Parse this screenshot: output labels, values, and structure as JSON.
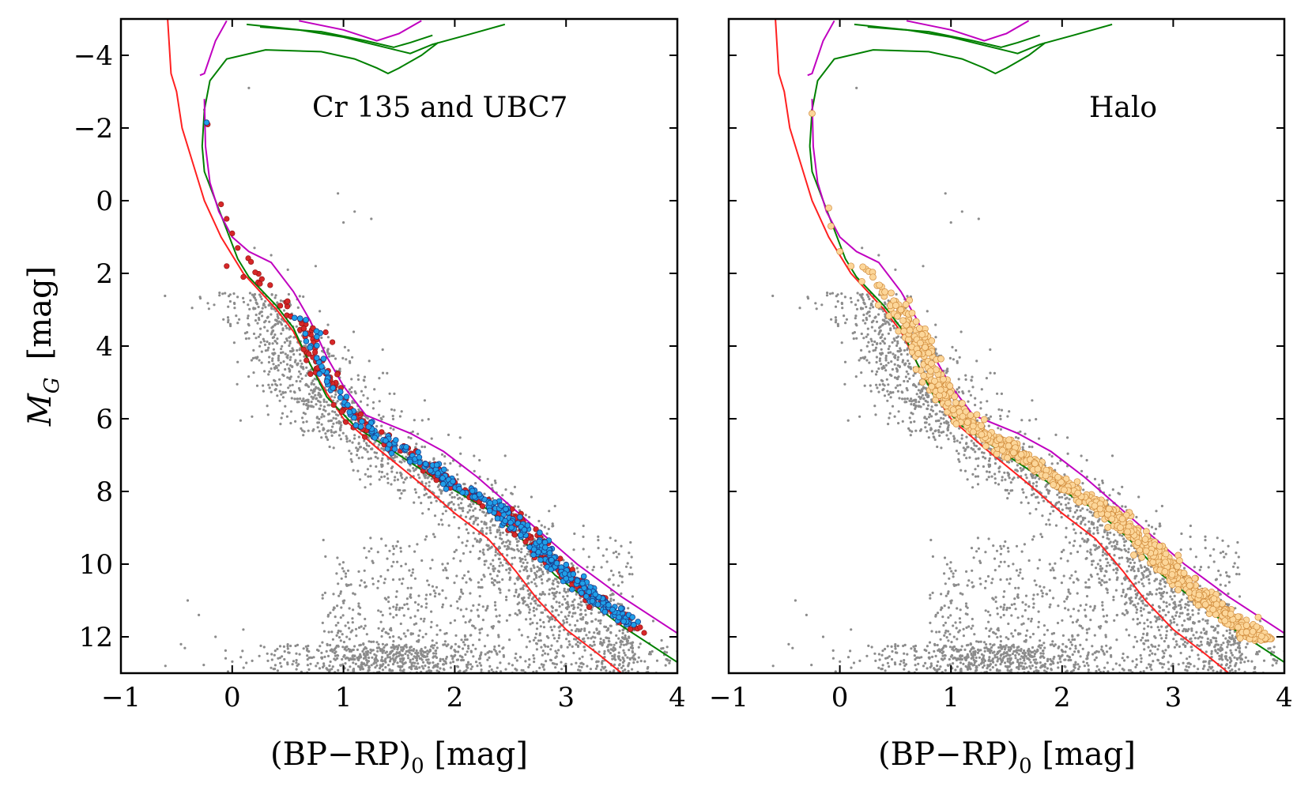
{
  "chart_data": [
    {
      "type": "scatter",
      "title": "Cr 135 and UBC7",
      "xlabel": "(BP−RP)",
      "xlabel_sub": "0",
      "xlabel_unit": " [mag]",
      "ylabel_main": "M",
      "ylabel_sub": "G",
      "ylabel_unit": "[mag]",
      "xlim": [
        -1,
        4
      ],
      "ylim": [
        13,
        -5
      ],
      "y_inverted": true,
      "xticks": [
        -1,
        0,
        1,
        2,
        3,
        4
      ],
      "xtick_labels": [
        "−1",
        "0",
        "1",
        "2",
        "3",
        "4"
      ],
      "yticks": [
        -4,
        -2,
        0,
        2,
        4,
        6,
        8,
        10,
        12
      ],
      "ytick_labels": [
        "−4",
        "−2",
        "0",
        "2",
        "4",
        "6",
        "8",
        "10",
        "12"
      ],
      "grid": false,
      "legend": null,
      "series": [
        {
          "kind": "field-stars",
          "color": "#8c8c8c",
          "marker": "dot"
        },
        {
          "kind": "members-red",
          "color": "#d62728",
          "marker": "circle"
        },
        {
          "kind": "members-blue",
          "color": "#1f9fe8",
          "edge": "#1b3a8a",
          "marker": "circle"
        }
      ]
    },
    {
      "type": "scatter",
      "title": "Halo",
      "xlabel": "(BP−RP)",
      "xlabel_sub": "0",
      "xlabel_unit": " [mag]",
      "xlim": [
        -1,
        4
      ],
      "ylim": [
        13,
        -5
      ],
      "y_inverted": true,
      "xticks": [
        -1,
        0,
        1,
        2,
        3,
        4
      ],
      "xtick_labels": [
        "−1",
        "0",
        "1",
        "2",
        "3",
        "4"
      ],
      "yticks": [
        -4,
        -2,
        0,
        2,
        4,
        6,
        8,
        10,
        12
      ],
      "grid": false,
      "legend": null,
      "series": [
        {
          "kind": "field-stars",
          "color": "#8c8c8c",
          "marker": "dot"
        },
        {
          "kind": "halo-members",
          "color": "#fcd699",
          "edge": "#d08a3a",
          "marker": "circle"
        }
      ]
    }
  ],
  "isochrones": [
    {
      "color": "#ff2020",
      "points": [
        [
          -0.58,
          -5
        ],
        [
          -0.55,
          -3.5
        ],
        [
          -0.5,
          -3
        ],
        [
          -0.45,
          -2
        ],
        [
          -0.35,
          -1
        ],
        [
          -0.25,
          0
        ],
        [
          -0.1,
          1
        ],
        [
          0.1,
          2
        ],
        [
          0.4,
          3
        ],
        [
          0.55,
          3.6
        ],
        [
          0.7,
          4.5
        ],
        [
          0.85,
          5.3
        ],
        [
          1.0,
          6.0
        ],
        [
          1.3,
          6.8
        ],
        [
          1.7,
          7.8
        ],
        [
          2.0,
          8.6
        ],
        [
          2.3,
          9.3
        ],
        [
          2.55,
          10.2
        ],
        [
          2.75,
          11.0
        ],
        [
          3.0,
          11.8
        ],
        [
          3.3,
          12.5
        ],
        [
          3.5,
          13
        ]
      ]
    },
    {
      "color": "#008000",
      "points": [
        [
          -0.27,
          -1.5
        ],
        [
          -0.25,
          -0.8
        ],
        [
          -0.15,
          0
        ],
        [
          -0.05,
          0.8
        ],
        [
          0.05,
          1.6
        ],
        [
          0.15,
          2.1
        ],
        [
          0.4,
          2.9
        ],
        [
          0.55,
          3.5
        ],
        [
          0.7,
          4.5
        ],
        [
          0.85,
          5.4
        ],
        [
          1.1,
          6.2
        ],
        [
          1.5,
          7.0
        ],
        [
          1.9,
          7.8
        ],
        [
          2.3,
          8.5
        ],
        [
          2.6,
          9.3
        ],
        [
          2.9,
          10.3
        ],
        [
          3.2,
          11.0
        ],
        [
          3.5,
          11.7
        ],
        [
          4.0,
          12.7
        ]
      ]
    },
    {
      "color": "#008000",
      "points": [
        [
          -0.27,
          -1.5
        ],
        [
          -0.25,
          -2.5
        ],
        [
          -0.2,
          -3.3
        ],
        [
          -0.05,
          -3.9
        ],
        [
          0.3,
          -4.15
        ],
        [
          0.8,
          -4.1
        ],
        [
          1.1,
          -3.9
        ],
        [
          1.3,
          -3.65
        ],
        [
          1.4,
          -3.5
        ],
        [
          1.5,
          -3.65
        ],
        [
          1.7,
          -4.0
        ],
        [
          1.85,
          -4.35
        ]
      ]
    },
    {
      "color": "#008000",
      "points": [
        [
          0.13,
          -4.85
        ],
        [
          0.6,
          -4.7
        ],
        [
          1.0,
          -4.5
        ],
        [
          1.4,
          -4.2
        ],
        [
          1.6,
          -4.05
        ],
        [
          1.8,
          -4.3
        ],
        [
          2.1,
          -4.55
        ],
        [
          2.45,
          -4.85
        ]
      ]
    },
    {
      "color": "#008000",
      "points": [
        [
          0.25,
          -4.78
        ],
        [
          0.8,
          -4.65
        ],
        [
          1.2,
          -4.4
        ],
        [
          1.45,
          -4.22
        ],
        [
          1.6,
          -4.35
        ],
        [
          1.8,
          -4.55
        ]
      ]
    },
    {
      "color": "#c000c0",
      "points": [
        [
          -0.29,
          -3.45
        ],
        [
          -0.25,
          -3.5
        ],
        [
          -0.15,
          -4.4
        ],
        [
          -0.05,
          -4.95
        ]
      ]
    },
    {
      "color": "#c000c0",
      "points": [
        [
          -0.25,
          -2.8
        ],
        [
          -0.24,
          -1.5
        ],
        [
          -0.2,
          -0.5
        ],
        [
          -0.12,
          0.3
        ],
        [
          0.0,
          1.0
        ],
        [
          0.15,
          1.4
        ],
        [
          0.35,
          1.7
        ],
        [
          0.55,
          2.5
        ],
        [
          0.7,
          3.3
        ],
        [
          0.85,
          4.3
        ],
        [
          1.0,
          5.1
        ],
        [
          1.2,
          5.9
        ],
        [
          1.6,
          6.4
        ],
        [
          1.9,
          6.9
        ],
        [
          2.2,
          7.6
        ],
        [
          2.5,
          8.4
        ],
        [
          2.8,
          9.2
        ],
        [
          3.1,
          10.0
        ],
        [
          3.5,
          10.9
        ],
        [
          4.0,
          11.9
        ]
      ]
    },
    {
      "color": "#c000c0",
      "points": [
        [
          0.6,
          -4.95
        ],
        [
          1.0,
          -4.7
        ],
        [
          1.3,
          -4.4
        ],
        [
          1.5,
          -4.6
        ],
        [
          1.7,
          -4.95
        ]
      ]
    }
  ]
}
